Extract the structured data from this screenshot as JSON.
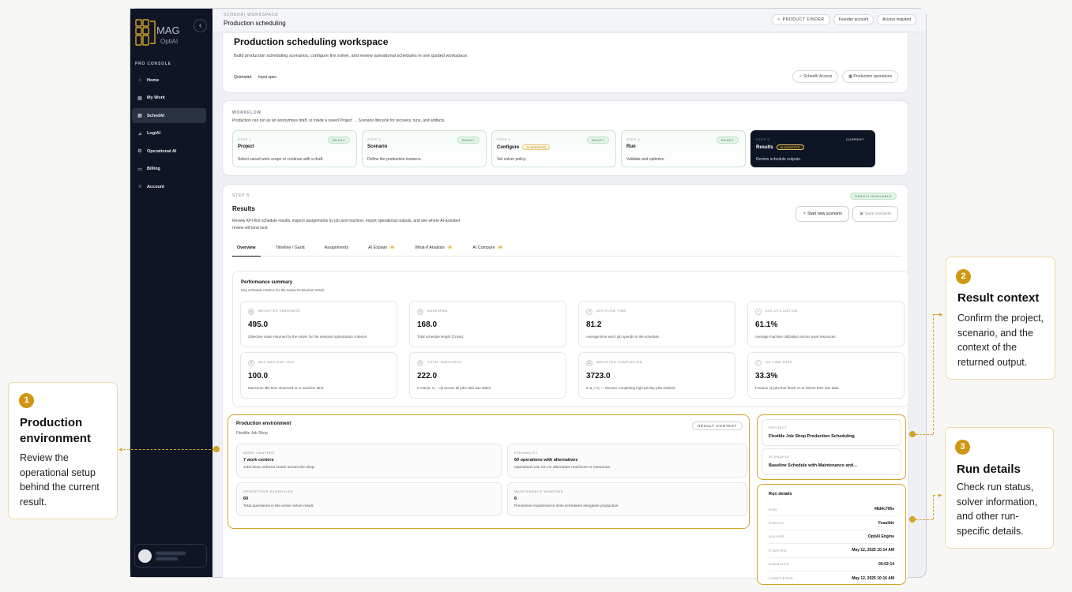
{
  "sidebar": {
    "logo_text": "MAG",
    "logo_sub": "OptiAI",
    "section_label": "PRO CONSOLE",
    "items": [
      {
        "icon": "home-icon",
        "glyph": "⌂",
        "label": "Home"
      },
      {
        "icon": "briefcase-icon",
        "glyph": "▤",
        "label": "My Work"
      },
      {
        "icon": "calendar-icon",
        "glyph": "▦",
        "label": "SchedAI",
        "active": true
      },
      {
        "icon": "chart-icon",
        "glyph": "⊿",
        "label": "LogiAI"
      },
      {
        "icon": "gear-icon",
        "glyph": "⚙",
        "label": "Operational AI"
      },
      {
        "icon": "card-icon",
        "glyph": "▭",
        "label": "Billing"
      },
      {
        "icon": "sliders-icon",
        "glyph": "≡",
        "label": "Account"
      }
    ]
  },
  "topbar": {
    "workspace_label": "SCHEDAI WORKSPACE",
    "title": "Production scheduling",
    "product_finder": "PRODUCT FINDER",
    "founder": "Founder account",
    "access": "Access required"
  },
  "hero": {
    "title": "Production scheduling workspace",
    "description": "Build production scheduling scenarios, configure the solver, and review operational schedules in one guided workspace.",
    "quickstart": "Quickstart",
    "sep": "·",
    "input_spec": "Input spec",
    "chip_access": "SchedAI Access",
    "chip_ops": "Production operations"
  },
  "workflow": {
    "label": "WORKFLOW",
    "subtitle": "Production can run as an anonymous draft, or inside a saved Project → Scenario lifecycle for recovery, runs, and artifacts.",
    "steps": [
      {
        "num": "STEP 1",
        "title": "Project",
        "desc": "Select saved work scope or continue with a draft.",
        "badge": "READY",
        "ai": ""
      },
      {
        "num": "STEP 2",
        "title": "Scenario",
        "desc": "Define the production instance.",
        "badge": "READY",
        "ai": ""
      },
      {
        "num": "STEP 3",
        "title": "Configure",
        "desc": "Set solver policy.",
        "badge": "READY",
        "ai": "AI-ASSISTED"
      },
      {
        "num": "STEP 4",
        "title": "Run",
        "desc": "Validate and optimize.",
        "badge": "READY",
        "ai": ""
      },
      {
        "num": "STEP 5",
        "title": "Results",
        "desc": "Review schedule outputs.",
        "badge": "CURRENT",
        "ai": "AI-ASSISTED"
      }
    ]
  },
  "results": {
    "step_label": "STEP 5",
    "title": "Results",
    "description": "Review KPI-first schedule results, inspect assignments by job and machine, export operational outputs, and see where AI-assisted review will land next.",
    "available": "RESULT AVAILABLE",
    "start_new": "Start new scenario",
    "save": "Save scenario",
    "tabs": [
      {
        "label": "Overview",
        "ai": ""
      },
      {
        "label": "Timeline / Gantt",
        "ai": ""
      },
      {
        "label": "Assignments",
        "ai": ""
      },
      {
        "label": "AI Explain",
        "ai": "AI"
      },
      {
        "label": "What-if Analysis",
        "ai": "AI"
      },
      {
        "label": "AI Compare",
        "ai": "AI"
      }
    ]
  },
  "performance": {
    "title": "Performance summary",
    "subtitle": "Key schedule metrics for the active Production result.",
    "metrics": [
      {
        "icon": "target-icon",
        "glyph": "◎",
        "label": "WEIGHTED TARDINESS",
        "value": "495.0",
        "desc": "Objective value returned by the solver for the selected optimization criterion."
      },
      {
        "icon": "clock-icon",
        "glyph": "◷",
        "label": "MAKESPAN",
        "value": "168.0",
        "desc": "Total schedule length (Cmax)."
      },
      {
        "icon": "flow-icon",
        "glyph": "↗",
        "label": "AVG FLOW TIME",
        "value": "81.2",
        "desc": "Average time each job spends in the schedule."
      },
      {
        "icon": "gauge-icon",
        "glyph": "◔",
        "label": "AVG UTILIZATION",
        "value": "61.1%",
        "desc": "Average machine utilization across used resources."
      },
      {
        "icon": "pause-icon",
        "glyph": "‖",
        "label": "MAX MACHINE IDLE",
        "value": "100.0",
        "desc": "Maximum idle time observed on a machine lane."
      },
      {
        "icon": "timer-icon",
        "glyph": "◷",
        "label": "TOTAL TARDINESS",
        "value": "222.0",
        "desc": "Σ max(0, Cⱼ − dⱼ) across all jobs with due dates."
      },
      {
        "icon": "weight-icon",
        "glyph": "⚖",
        "label": "WEIGHTED COMPLETION",
        "value": "3723.0",
        "desc": "Σ wⱼ × Cⱼ — favours completing high-priority jobs earliest."
      },
      {
        "icon": "check-circle-icon",
        "glyph": "✓",
        "label": "ON-TIME RATE",
        "value": "33.3%",
        "desc": "Fraction of jobs that finish on or before their due date."
      }
    ]
  },
  "environment": {
    "title": "Production environment",
    "subtitle": "Flexible Job Shop",
    "badge": "RESULT CONTEXT",
    "cells": [
      {
        "label": "WORK CENTERS",
        "value": "7 work centers",
        "desc": "Jobs keep ordered routes across the shop."
      },
      {
        "label": "FLEXIBILITY",
        "value": "60 operations with alternatives",
        "desc": "Operations can run on alternative machines or resources."
      },
      {
        "label": "OPERATIONS SCHEDULED",
        "value": "60",
        "desc": "Total operations in the active solver result."
      },
      {
        "label": "MAINTENANCE WINDOWS",
        "value": "6",
        "desc": "Preventive maintenance slots scheduled alongside production."
      }
    ]
  },
  "context": {
    "project_label": "PROJECT",
    "project": "Flexible Job Shop Production Scheduling",
    "scenario_label": "SCENARIO",
    "scenario": "Baseline Schedule with Maintenance and..."
  },
  "run": {
    "title": "Run details",
    "rows": [
      {
        "key": "RUN",
        "value": "#8d4c705e"
      },
      {
        "key": "STATUS",
        "value": "Feasible"
      },
      {
        "key": "SOLVER",
        "value": "OptiAI Engine"
      },
      {
        "key": "STARTED",
        "value": "May 12, 2025 10:14 AM"
      },
      {
        "key": "DURATION",
        "value": "00:02:14"
      },
      {
        "key": "COMPLETED",
        "value": "May 12, 2025 10:16 AM"
      }
    ]
  },
  "callouts": {
    "c1": {
      "num": "1",
      "title_l1": "Production",
      "title_l2": "environment",
      "body": "Review the operational setup behind the current result."
    },
    "c2": {
      "num": "2",
      "title": "Result context",
      "body": "Confirm the project, scenario, and the context of the returned output."
    },
    "c3": {
      "num": "3",
      "title": "Run details",
      "body": "Check run status, solver information, and other run-specific details."
    }
  },
  "colors": {
    "accent": "#d4a227",
    "sidebar": "#0f1524",
    "ready_green": "#2e7d4f"
  }
}
